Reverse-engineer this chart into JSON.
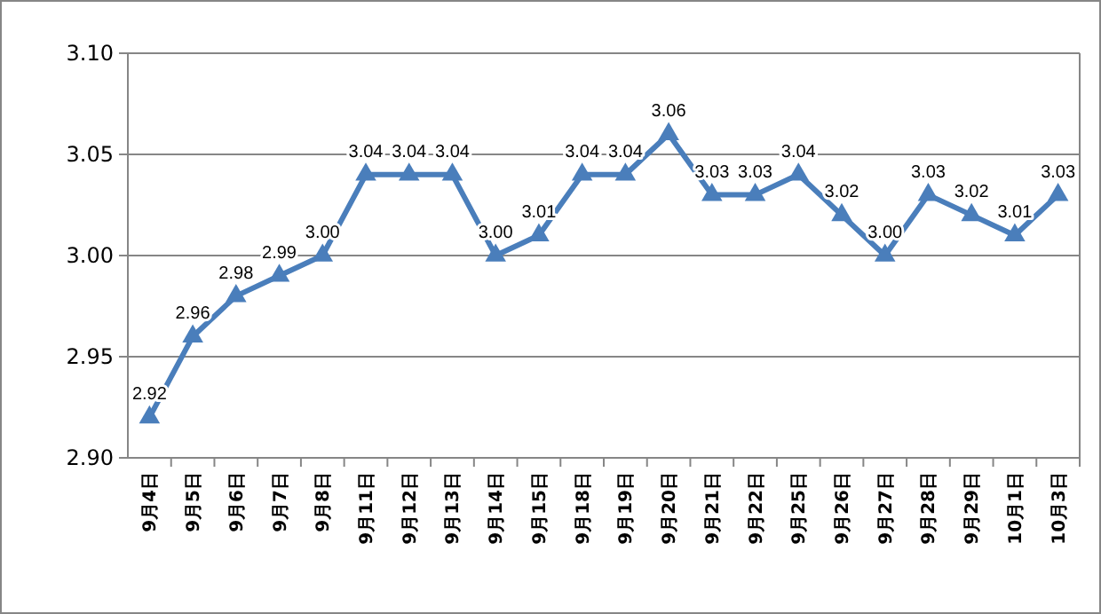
{
  "chart_data": {
    "type": "line",
    "categories": [
      "9月4日",
      "9月5日",
      "9月6日",
      "9月7日",
      "9月8日",
      "9月11日",
      "9月12日",
      "9月13日",
      "9月14日",
      "9月15日",
      "9月18日",
      "9月19日",
      "9月20日",
      "9月21日",
      "9月22日",
      "9月25日",
      "9月26日",
      "9月27日",
      "9月28日",
      "9月29日",
      "10月1日",
      "10月3日"
    ],
    "series": [
      {
        "color": "#4a7ebb",
        "values": [
          2.92,
          2.96,
          2.98,
          2.99,
          3.0,
          3.04,
          3.04,
          3.04,
          3.0,
          3.01,
          3.04,
          3.04,
          3.06,
          3.03,
          3.03,
          3.04,
          3.02,
          3.0,
          3.03,
          3.02,
          3.01,
          3.03
        ],
        "value_labels": [
          "2.92",
          "2.96",
          "2.98",
          "2.99",
          "3.00",
          "3.04",
          "3.04",
          "3.04",
          "3.00",
          "3.01",
          "3.04",
          "3.04",
          "3.06",
          "3.03",
          "3.03",
          "3.04",
          "3.02",
          "3.00",
          "3.03",
          "3.02",
          "3.01",
          "3.03"
        ]
      }
    ],
    "ylim": [
      2.9,
      3.1
    ],
    "yticks": [
      {
        "value": 2.9,
        "label": "2.90"
      },
      {
        "value": 2.95,
        "label": "2.95"
      },
      {
        "value": 3.0,
        "label": "3.00"
      },
      {
        "value": 3.05,
        "label": "3.05"
      },
      {
        "value": 3.1,
        "label": "3.10"
      }
    ],
    "grid": "y",
    "marker": "triangle",
    "line_style": "solid"
  }
}
